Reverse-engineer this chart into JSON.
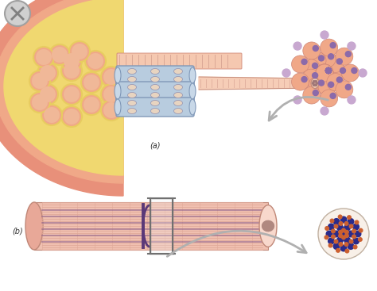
{
  "bg_color": "#ffffff",
  "label_a": "(a)",
  "label_b": "(b)",
  "salmon_outer": "#E8907A",
  "salmon_body": "#F0A888",
  "salmon_light": "#F5C8B0",
  "salmon_fiber": "#F0B898",
  "yellow_net": "#E8CC60",
  "yellow_fill": "#F0D870",
  "blue_myo": "#B8CCDF",
  "blue_myo2": "#C8D8E8",
  "purple_dark": "#5A3878",
  "purple_mid": "#8B6AAA",
  "purple_light": "#C8A8D0",
  "dot_blue": "#2A2A8A",
  "dot_orange": "#CC6030",
  "gray_arrow": "#B0B0B0",
  "fiber_pink": "#F0C0B0",
  "fiber_stripe": "#E8A898",
  "fiber_dark_stripe": "#7B5088",
  "cross_bg": "#F8F0E8"
}
